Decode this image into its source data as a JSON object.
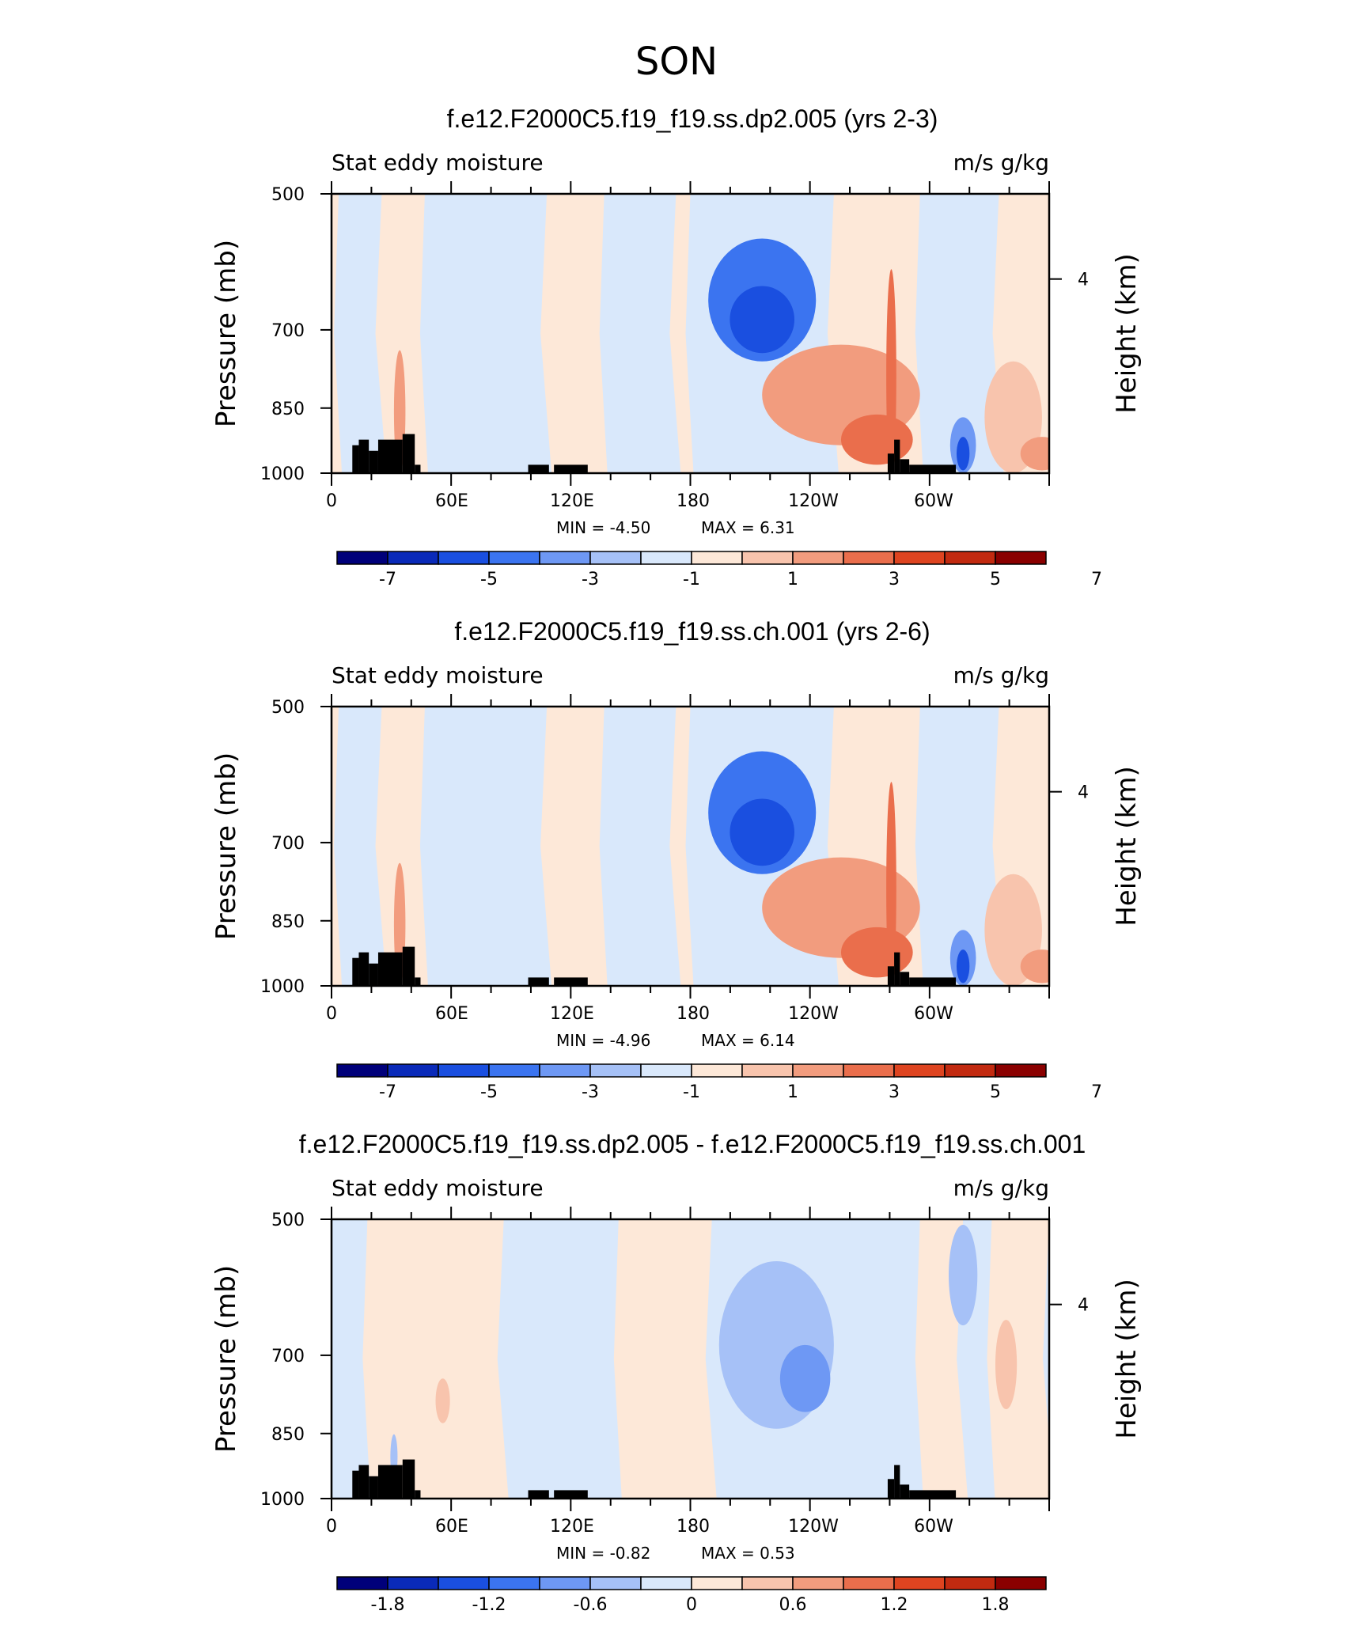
{
  "figure_title": "SON",
  "palette": {
    "lb_colors": [
      "#00007a",
      "#0a2ab9",
      "#1a4fe0",
      "#3b74f0",
      "#6e98f4",
      "#a6c1f7",
      "#d9e8fb",
      "#fde8d8",
      "#f8c4ad",
      "#f29c7e",
      "#ea6e4c",
      "#de4420",
      "#c22a10",
      "#8a0000"
    ],
    "land": "#000000"
  },
  "chart_data": [
    {
      "type": "heatmap",
      "title": "f.e12.F2000C5.f19_f19.ss.dp2.005 (yrs 2-3)",
      "left_label": "Stat eddy moisture",
      "right_label": "m/s g/kg",
      "ylabel": "Pressure (mb)",
      "ylabel_right": "Height (km)",
      "x_ticks": [
        "0",
        "60E",
        "120E",
        "180",
        "120W",
        "60W"
      ],
      "y_ticks": [
        "500",
        "700",
        "850",
        "1000"
      ],
      "y_right_ticks": [
        "4"
      ],
      "min_text": "MIN =   -4.50",
      "max_text": "MAX =     6.31",
      "colorbar_labels": [
        "-7",
        "-5",
        "-3",
        "-1",
        "1",
        "3",
        "5",
        "7"
      ]
    },
    {
      "type": "heatmap",
      "title": "f.e12.F2000C5.f19_f19.ss.ch.001 (yrs 2-6)",
      "left_label": "Stat eddy moisture",
      "right_label": "m/s g/kg",
      "ylabel": "Pressure (mb)",
      "ylabel_right": "Height (km)",
      "x_ticks": [
        "0",
        "60E",
        "120E",
        "180",
        "120W",
        "60W"
      ],
      "y_ticks": [
        "500",
        "700",
        "850",
        "1000"
      ],
      "y_right_ticks": [
        "4"
      ],
      "min_text": "MIN =   -4.96",
      "max_text": "MAX =     6.14",
      "colorbar_labels": [
        "-7",
        "-5",
        "-3",
        "-1",
        "1",
        "3",
        "5",
        "7"
      ]
    },
    {
      "type": "heatmap",
      "title": "f.e12.F2000C5.f19_f19.ss.dp2.005 - f.e12.F2000C5.f19_f19.ss.ch.001",
      "left_label": "Stat eddy moisture",
      "right_label": "m/s g/kg",
      "ylabel": "Pressure (mb)",
      "ylabel_right": "Height (km)",
      "x_ticks": [
        "0",
        "60E",
        "120E",
        "180",
        "120W",
        "60W"
      ],
      "y_ticks": [
        "500",
        "700",
        "850",
        "1000"
      ],
      "y_right_ticks": [
        "4"
      ],
      "min_text": "MIN =   -0.82",
      "max_text": "MAX =    0.53",
      "colorbar_labels": [
        "-1.8",
        "-1.2",
        "-0.6",
        "0",
        "0.6",
        "1.2",
        "1.8"
      ]
    }
  ]
}
